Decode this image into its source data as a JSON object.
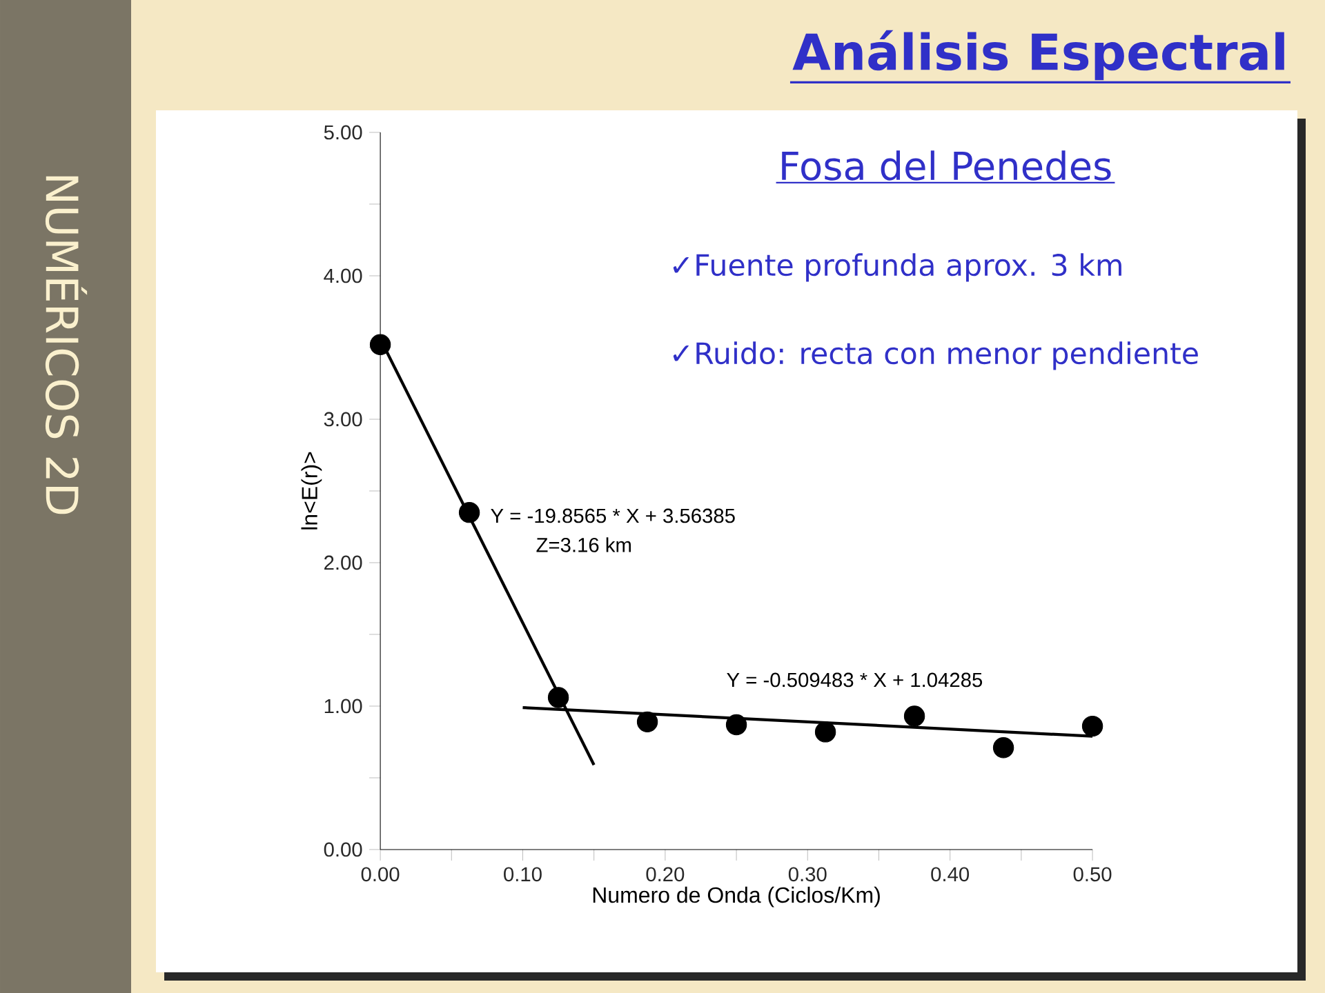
{
  "chart_data": {
    "type": "scatter",
    "title": "Análisis Espectral",
    "subtitle": "Fosa del Penedes",
    "xlabel": "Numero de Onda (Ciclos/Km)",
    "ylabel": "ln<E(r)>",
    "xlim": [
      0,
      0.5
    ],
    "ylim": [
      0,
      5
    ],
    "xticks": [
      {
        "value": 0,
        "label": "0.00"
      },
      {
        "value": 0.05,
        "label": null
      },
      {
        "value": 0.1,
        "label": "0.10"
      },
      {
        "value": 0.15,
        "label": null
      },
      {
        "value": 0.2,
        "label": "0.20"
      },
      {
        "value": 0.25,
        "label": null
      },
      {
        "value": 0.3,
        "label": "0.30"
      },
      {
        "value": 0.35,
        "label": null
      },
      {
        "value": 0.4,
        "label": "0.40"
      },
      {
        "value": 0.45,
        "label": null
      },
      {
        "value": 0.5,
        "label": "0.50"
      }
    ],
    "yticks": [
      {
        "value": 0,
        "label": "0.00"
      },
      {
        "value": 0.5,
        "label": null
      },
      {
        "value": 1,
        "label": "1.00"
      },
      {
        "value": 1.5,
        "label": null
      },
      {
        "value": 2,
        "label": "2.00"
      },
      {
        "value": 2.5,
        "label": null
      },
      {
        "value": 3,
        "label": "3.00"
      },
      {
        "value": 3.5,
        "label": null
      },
      {
        "value": 4,
        "label": "4.00"
      },
      {
        "value": 4.5,
        "label": null
      },
      {
        "value": 5,
        "label": "5.00"
      }
    ],
    "series": [
      {
        "marker": "circle",
        "color": "#000000",
        "x": [
          0,
          0.0625,
          0.125,
          0.1875,
          0.25,
          0.3125,
          0.375,
          0.4375,
          0.5
        ],
        "values": [
          3.52,
          2.35,
          1.06,
          0.89,
          0.87,
          0.82,
          0.93,
          0.71,
          0.86
        ]
      },
      {
        "type": "line",
        "marker": "none",
        "color": "#000000",
        "x": [
          0,
          0.15
        ],
        "values": [
          3.56,
          0.59
        ]
      },
      {
        "type": "line",
        "marker": "none",
        "color": "#000000",
        "x": [
          0.1,
          0.5
        ],
        "values": [
          0.99,
          0.79
        ]
      }
    ],
    "annotations": [
      "✓Fuente profunda aprox. 3 km",
      "✓Ruido: recta con menor pendiente",
      "NUMÉRICOS 2D",
      "Y = -19.8565 * X + 3.56385",
      "Z=3.16 km",
      "Y = -0.509483 * X + 1.04285"
    ]
  }
}
